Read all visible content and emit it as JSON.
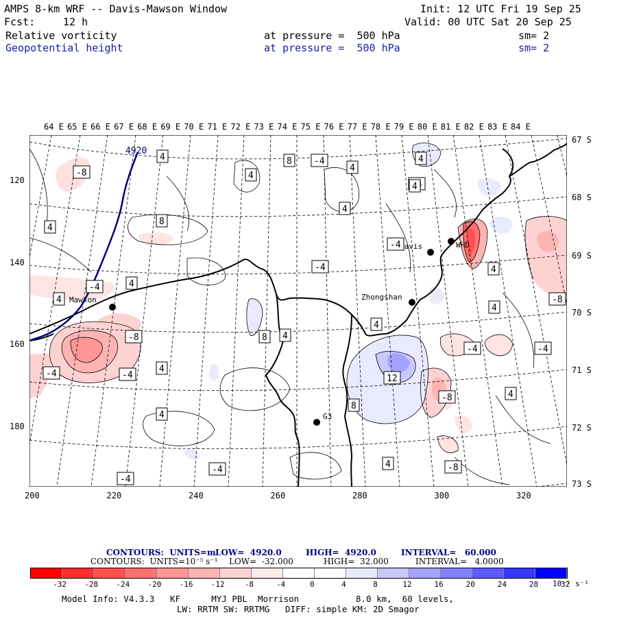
{
  "header": {
    "model_title": "AMPS 8-km WRF -- Davis-Mawson Window",
    "init": "Init: 12 UTC Fri 19 Sep 25",
    "fcst_label": "Fcst:",
    "fcst_value": "12 h",
    "valid": "Valid: 00 UTC Sat 20 Sep 25",
    "fields": [
      {
        "name": "Relative vorticity",
        "level": "at pressure =  500 hPa",
        "smooth": "sm= 2"
      },
      {
        "name": "Geopotential height",
        "level": "at pressure =  500 hPa",
        "smooth": "sm= 2"
      }
    ]
  },
  "map": {
    "lon_labels": [
      "64 E",
      "65 E",
      "66 E",
      "67 E",
      "68 E",
      "69 E",
      "70 E",
      "71 E",
      "72 E",
      "73 E",
      "74 E",
      "75 E",
      "76 E",
      "77 E",
      "78 E",
      "79 E",
      "80 E",
      "81 E",
      "82 E",
      "83 E",
      "84 E"
    ],
    "lat_labels": [
      "67 S",
      "68 S",
      "69 S",
      "70 S",
      "71 S",
      "72 S",
      "73 S"
    ],
    "x_ticks": [
      "200",
      "220",
      "240",
      "260",
      "280",
      "300",
      "320"
    ],
    "y_ticks": [
      "120",
      "140",
      "160",
      "180"
    ],
    "stations": [
      {
        "name": "Mawson"
      },
      {
        "name": "Davis"
      },
      {
        "name": "WHD"
      },
      {
        "name": "Zhongshan"
      },
      {
        "name": "G3"
      }
    ],
    "height_label": "4920",
    "contour_labels": [
      "-8",
      "4",
      "-4",
      "4",
      "8",
      "4",
      "8",
      "4",
      "-4",
      "4",
      "4",
      "4",
      "-4",
      "-4",
      "-4",
      "4",
      "4",
      "-8",
      "8",
      "4",
      "-8",
      "-4",
      "4",
      "4",
      "12",
      "8",
      "-4",
      "-8",
      "-4",
      "4",
      "-4",
      "4",
      "4",
      "4",
      "4",
      "-4",
      "-4",
      "-8"
    ]
  },
  "footer": {
    "line1": {
      "contours": "CONTOURS:  UNITS=m",
      "low": "LOW=  4920.0",
      "high": "HIGH=  4920.0",
      "interval": "INTERVAL=   60.000"
    },
    "line2": {
      "contours": "CONTOURS:  UNITS=10⁻⁵ s⁻¹",
      "low": "LOW=  -32.000",
      "high": "HIGH=  32.000",
      "interval": "INTERVAL=   4.0000"
    },
    "colorbar_ticks": [
      "-32",
      "-28",
      "-24",
      "-20",
      "-16",
      "-12",
      "-8",
      "-4",
      "0",
      "4",
      "8",
      "12",
      "16",
      "20",
      "24",
      "28",
      "32"
    ],
    "colorbar_unit": "10⁻⁵ s⁻¹",
    "colorbar_colors": [
      "#ff0000",
      "#ff2e2e",
      "#ff4f4f",
      "#ff7070",
      "#ff9696",
      "#ffb4b4",
      "#ffd2d2",
      "#ffeaea",
      "#ffffff",
      "#ffffff",
      "#eaeaff",
      "#c8c8ff",
      "#a4a4ff",
      "#8282ff",
      "#5c5cff",
      "#3838ff",
      "#0000ff"
    ],
    "model_info": "Model Info: V4.3.3   KF      MYJ PBL  Morrison           8.0 km,  60 levels,",
    "model_info2": "LW: RRTM SW: RRTMG   DIFF: simple KM: 2D Smagor"
  }
}
